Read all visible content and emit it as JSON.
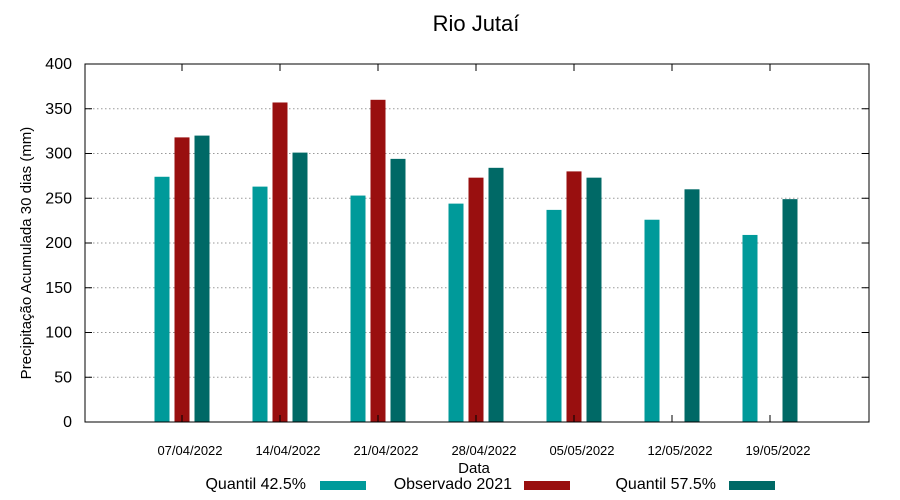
{
  "chart_data": {
    "type": "bar",
    "title": "Rio Jutaí",
    "xlabel": "Data",
    "ylabel": "Precipitação Acumulada 30 dias (mm)",
    "ylim": [
      0,
      400
    ],
    "yticks": [
      0,
      50,
      100,
      150,
      200,
      250,
      300,
      350,
      400
    ],
    "grid": true,
    "legend_position": "bottom",
    "categories": [
      "07/04/2022",
      "14/04/2022",
      "21/04/2022",
      "28/04/2022",
      "05/05/2022",
      "12/05/2022",
      "19/05/2022"
    ],
    "series": [
      {
        "name": "Quantil 42.5%",
        "color": "#009a9a",
        "values": [
          274,
          263,
          253,
          244,
          237,
          226,
          209
        ]
      },
      {
        "name": "Observado 2021",
        "color": "#990f0f",
        "values": [
          318,
          357,
          360,
          273,
          280,
          null,
          null
        ]
      },
      {
        "name": "Quantil 57.5%",
        "color": "#006966",
        "values": [
          320,
          301,
          294,
          284,
          273,
          260,
          249
        ]
      }
    ]
  }
}
